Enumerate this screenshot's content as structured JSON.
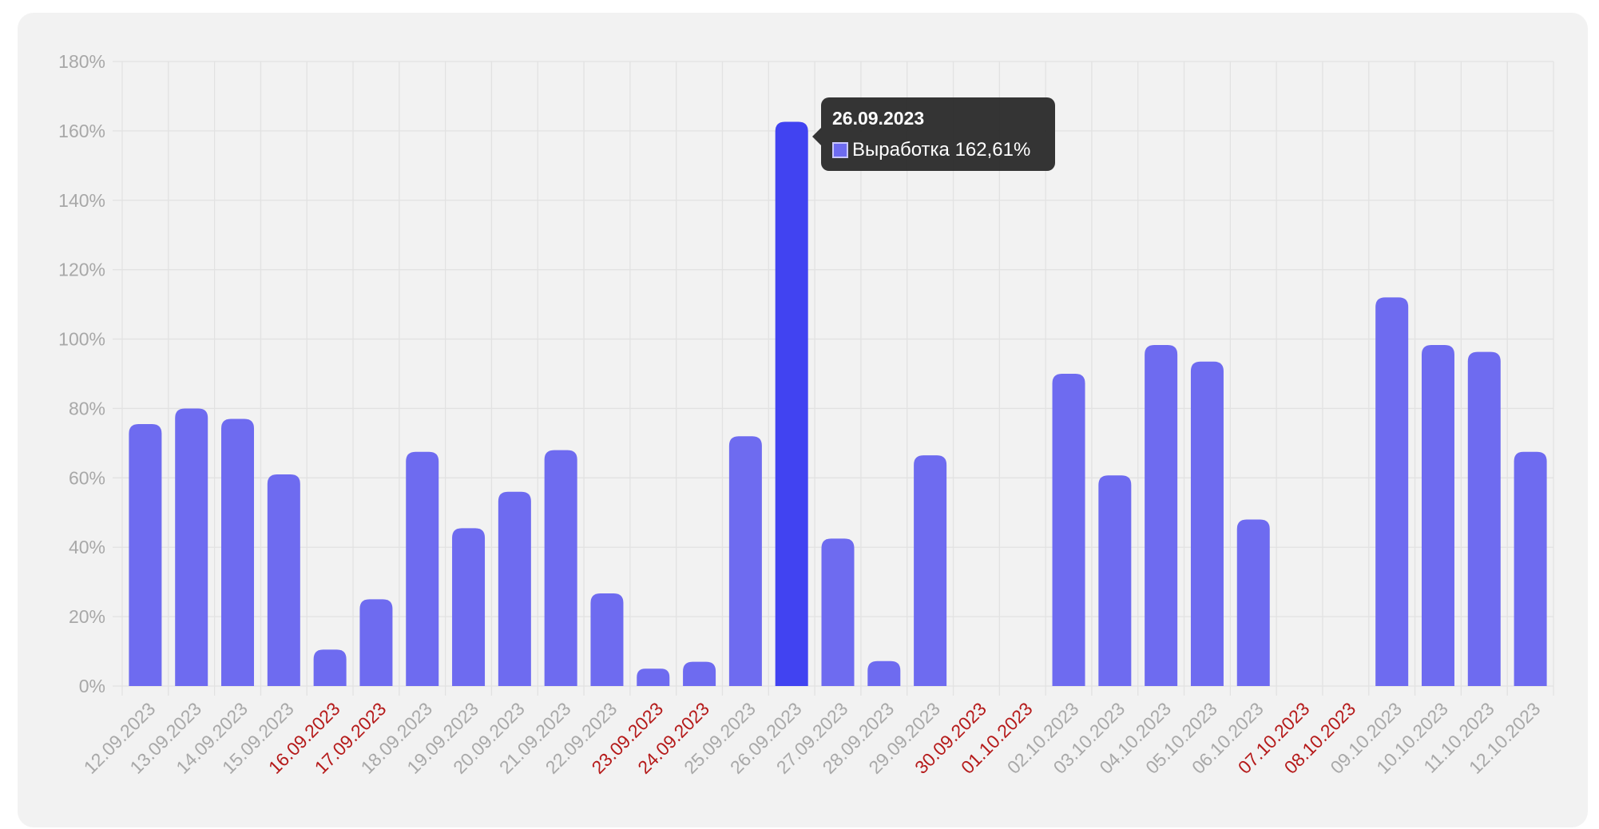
{
  "colors": {
    "bar": "#6e6bf0",
    "bar_active": "#4143f1",
    "axis_text": "#a8a8a8",
    "weekend_text": "#b51a1a",
    "grid": "#e2e2e2"
  },
  "tooltip": {
    "date": "26.09.2023",
    "series_name": "Выработка",
    "value_text": "162,61%"
  },
  "chart_data": {
    "type": "bar",
    "xlabel": "",
    "ylabel": "",
    "y_ticks": [
      "0%",
      "20%",
      "40%",
      "60%",
      "80%",
      "100%",
      "120%",
      "140%",
      "160%",
      "180%"
    ],
    "ylim": [
      0,
      180
    ],
    "grid": true,
    "active_index": 14,
    "categories": [
      "12.09.2023",
      "13.09.2023",
      "14.09.2023",
      "15.09.2023",
      "16.09.2023",
      "17.09.2023",
      "18.09.2023",
      "19.09.2023",
      "20.09.2023",
      "21.09.2023",
      "22.09.2023",
      "23.09.2023",
      "24.09.2023",
      "25.09.2023",
      "26.09.2023",
      "27.09.2023",
      "28.09.2023",
      "29.09.2023",
      "30.09.2023",
      "01.10.2023",
      "02.10.2023",
      "03.10.2023",
      "04.10.2023",
      "05.10.2023",
      "06.10.2023",
      "07.10.2023",
      "08.10.2023",
      "09.10.2023",
      "10.10.2023",
      "11.10.2023",
      "12.10.2023"
    ],
    "weekend_categories": [
      "16.09.2023",
      "17.09.2023",
      "23.09.2023",
      "24.09.2023",
      "30.09.2023",
      "01.10.2023",
      "07.10.2023",
      "08.10.2023"
    ],
    "series": [
      {
        "name": "Выработка",
        "values": [
          75.5,
          80.0,
          77.0,
          61.0,
          10.5,
          25.0,
          67.5,
          45.5,
          56.0,
          68.0,
          26.7,
          5.0,
          7.0,
          72.0,
          162.61,
          42.5,
          7.2,
          66.5,
          0,
          0,
          90.0,
          60.7,
          98.3,
          93.5,
          48.0,
          0,
          0,
          112.0,
          98.3,
          96.3,
          67.5
        ]
      }
    ]
  }
}
